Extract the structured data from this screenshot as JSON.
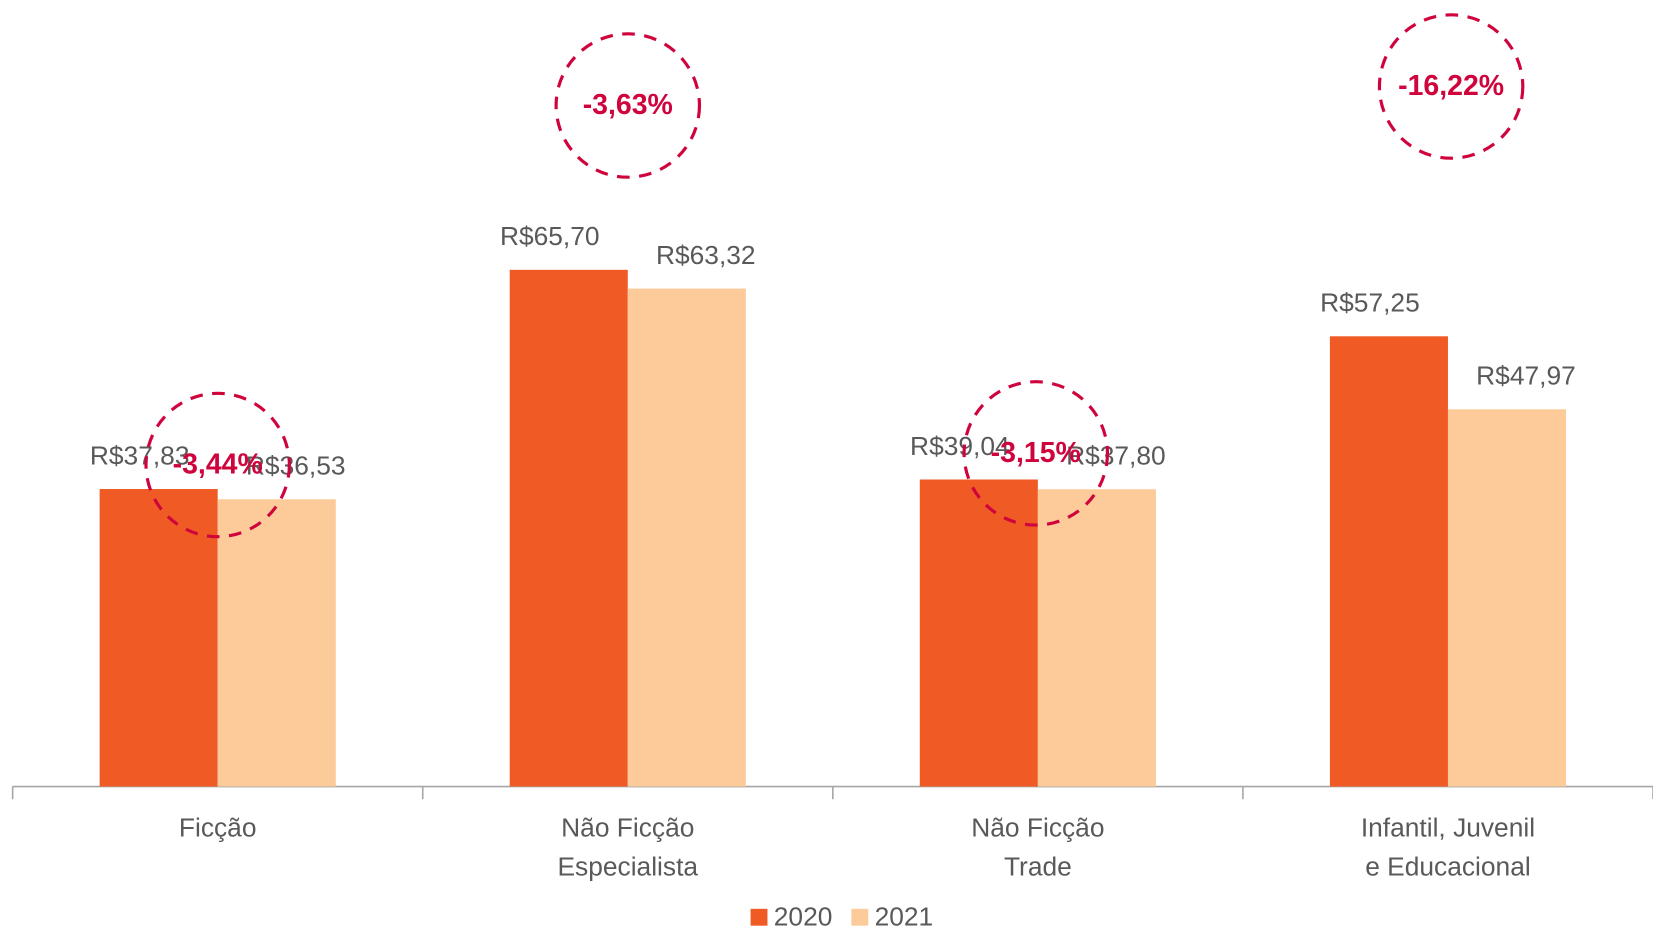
{
  "chart_data": {
    "type": "bar",
    "categories": [
      [
        "Ficção"
      ],
      [
        "Não Ficção",
        "Especialista"
      ],
      [
        "Não Ficção",
        "Trade"
      ],
      [
        "Infantil, Juvenil",
        "e Educacional"
      ]
    ],
    "series": [
      {
        "name": "2020",
        "color": "#f05a24",
        "values": [
          37.83,
          65.7,
          39.04,
          57.25
        ],
        "value_labels": [
          "R$37,83",
          "R$65,70",
          "R$39,04",
          "R$57,25"
        ]
      },
      {
        "name": "2021",
        "color": "#fdcb9a",
        "values": [
          36.53,
          63.32,
          37.8,
          47.97
        ],
        "value_labels": [
          "R$36,53",
          "R$63,32",
          "R$37,80",
          "R$47,97"
        ]
      }
    ],
    "annotations": [
      "-3,44%",
      "-3,63%",
      "-3,15%",
      "-16,22%"
    ],
    "ylim": [
      0,
      100
    ],
    "legend": "bottom"
  }
}
